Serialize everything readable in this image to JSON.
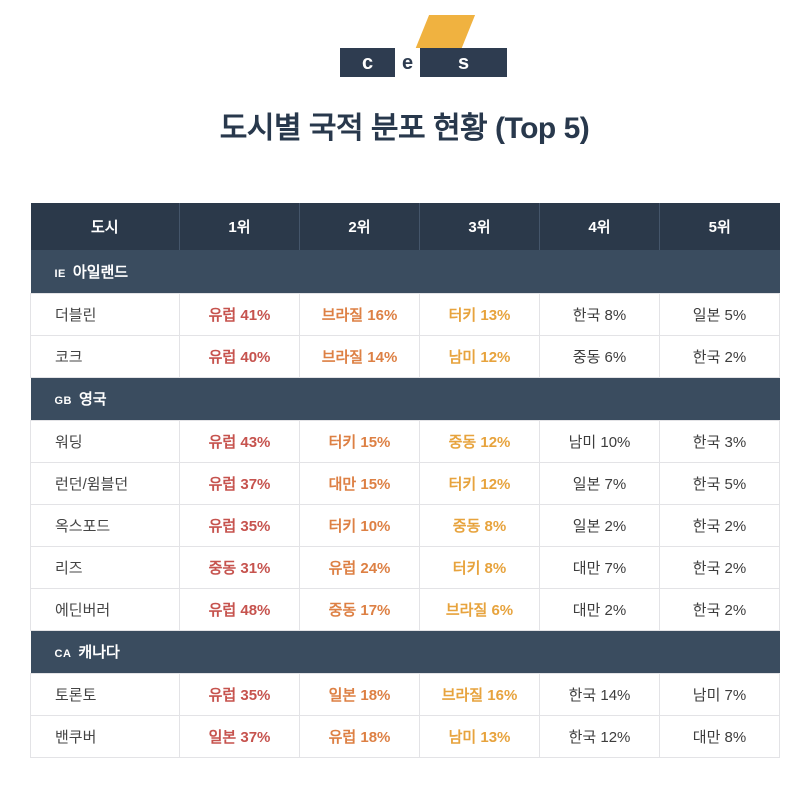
{
  "logo": {
    "letters": {
      "c": "c",
      "e": "e",
      "s": "s"
    },
    "navy": "#2e3c50",
    "yellow": "#f0b240"
  },
  "title": "도시별 국적 분포 현황 (Top 5)",
  "chart_data": {
    "type": "table",
    "title": "도시별 국적 분포 현황 (Top 5)",
    "columns": [
      "도시",
      "1위",
      "2위",
      "3위",
      "4위",
      "5위"
    ],
    "rank_colors": [
      "#c6534e",
      "#dd8044",
      "#e7a33d",
      "#3d3d3d",
      "#3d3d3d"
    ],
    "header_bg": "#2b394a",
    "section_bg": "#3a4c5f",
    "sections": [
      {
        "code": "IE",
        "name": "아일랜드",
        "rows": [
          {
            "city": "더블린",
            "values": [
              "유럽 41%",
              "브라질 16%",
              "터키 13%",
              "한국 8%",
              "일본 5%"
            ]
          },
          {
            "city": "코크",
            "values": [
              "유럽 40%",
              "브라질 14%",
              "남미 12%",
              "중동 6%",
              "한국 2%"
            ]
          }
        ]
      },
      {
        "code": "GB",
        "name": "영국",
        "rows": [
          {
            "city": "워딩",
            "values": [
              "유럽 43%",
              "터키 15%",
              "중동 12%",
              "남미 10%",
              "한국 3%"
            ]
          },
          {
            "city": "런던/윔블던",
            "values": [
              "유럽 37%",
              "대만 15%",
              "터키 12%",
              "일본 7%",
              "한국 5%"
            ]
          },
          {
            "city": "옥스포드",
            "values": [
              "유럽 35%",
              "터키 10%",
              "중동 8%",
              "일본 2%",
              "한국 2%"
            ]
          },
          {
            "city": "리즈",
            "values": [
              "중동 31%",
              "유럽 24%",
              "터키 8%",
              "대만 7%",
              "한국 2%"
            ]
          },
          {
            "city": "에딘버러",
            "values": [
              "유럽 48%",
              "중동 17%",
              "브라질 6%",
              "대만 2%",
              "한국 2%"
            ]
          }
        ]
      },
      {
        "code": "CA",
        "name": "캐나다",
        "rows": [
          {
            "city": "토론토",
            "values": [
              "유럽 35%",
              "일본 18%",
              "브라질 16%",
              "한국 14%",
              "남미 7%"
            ]
          },
          {
            "city": "밴쿠버",
            "values": [
              "일본 37%",
              "유럽 18%",
              "남미 13%",
              "한국 12%",
              "대만 8%"
            ]
          }
        ]
      }
    ]
  }
}
